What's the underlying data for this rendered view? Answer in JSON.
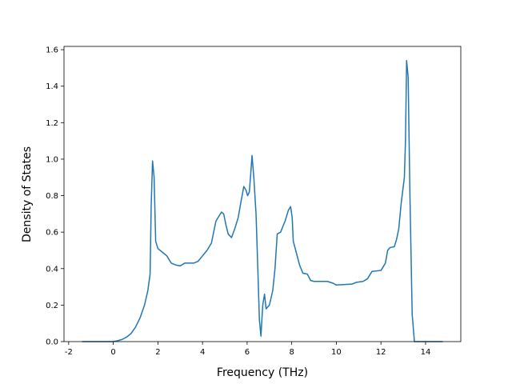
{
  "chart_data": {
    "type": "line",
    "xlabel": "Frequency (THz)",
    "ylabel": "Density of States",
    "x": [
      -1.4,
      -1.0,
      -0.5,
      0,
      0.2,
      0.4,
      0.6,
      0.8,
      1.0,
      1.2,
      1.4,
      1.55,
      1.65,
      1.7,
      1.76,
      1.83,
      1.9,
      2.0,
      2.2,
      2.4,
      2.6,
      2.8,
      3.0,
      3.2,
      3.4,
      3.6,
      3.8,
      4.0,
      4.2,
      4.4,
      4.5,
      4.6,
      4.7,
      4.85,
      4.95,
      5.05,
      5.15,
      5.3,
      5.45,
      5.6,
      5.7,
      5.85,
      5.95,
      6.02,
      6.1,
      6.18,
      6.22,
      6.3,
      6.4,
      6.48,
      6.55,
      6.62,
      6.7,
      6.78,
      6.85,
      7.0,
      7.15,
      7.25,
      7.35,
      7.5,
      7.7,
      7.85,
      7.95,
      8.02,
      8.07,
      8.2,
      8.35,
      8.5,
      8.7,
      8.85,
      9.0,
      9.6,
      9.85,
      10.0,
      10.7,
      10.9,
      11.2,
      11.4,
      11.6,
      12.0,
      12.2,
      12.3,
      12.4,
      12.6,
      12.7,
      12.8,
      12.9,
      13.0,
      13.05,
      13.1,
      13.15,
      13.22,
      13.3,
      13.4,
      13.5,
      14.77
    ],
    "series": [
      {
        "color": "#1f77b4",
        "values": [
          0,
          0,
          0,
          0,
          0.005,
          0.012,
          0.025,
          0.045,
          0.08,
          0.13,
          0.2,
          0.28,
          0.37,
          0.75,
          0.99,
          0.9,
          0.55,
          0.51,
          0.49,
          0.47,
          0.43,
          0.42,
          0.415,
          0.43,
          0.43,
          0.43,
          0.44,
          0.47,
          0.5,
          0.54,
          0.6,
          0.66,
          0.68,
          0.71,
          0.7,
          0.64,
          0.59,
          0.57,
          0.62,
          0.68,
          0.75,
          0.85,
          0.83,
          0.8,
          0.82,
          0.95,
          1.02,
          0.9,
          0.7,
          0.4,
          0.12,
          0.03,
          0.2,
          0.26,
          0.18,
          0.2,
          0.28,
          0.4,
          0.59,
          0.6,
          0.66,
          0.72,
          0.74,
          0.68,
          0.55,
          0.49,
          0.42,
          0.375,
          0.37,
          0.335,
          0.33,
          0.33,
          0.32,
          0.31,
          0.315,
          0.325,
          0.33,
          0.345,
          0.385,
          0.39,
          0.43,
          0.5,
          0.515,
          0.52,
          0.56,
          0.62,
          0.75,
          0.85,
          0.9,
          1.1,
          1.54,
          1.45,
          0.8,
          0.15,
          0,
          0
        ]
      }
    ],
    "xlim": [
      -2.21,
      15.58
    ],
    "ylim": [
      0,
      1.618
    ],
    "xticks": [
      -2,
      0,
      2,
      4,
      6,
      8,
      10,
      12,
      14
    ],
    "yticks": [
      {
        "value": 0,
        "label": "0.0"
      },
      {
        "value": 0.2,
        "label": "0.2"
      },
      {
        "value": 0.4,
        "label": "0.4"
      },
      {
        "value": 0.6,
        "label": "0.6"
      },
      {
        "value": 0.8,
        "label": "0.8"
      },
      {
        "value": 1,
        "label": "1.0"
      },
      {
        "value": 1.2,
        "label": "1.2"
      },
      {
        "value": 1.4,
        "label": "1.4"
      },
      {
        "value": 1.6,
        "label": "1.6"
      }
    ]
  }
}
